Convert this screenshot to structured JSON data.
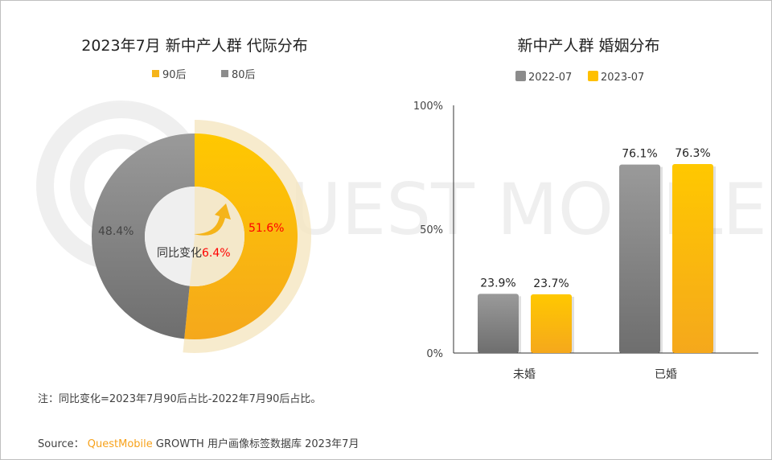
{
  "watermark": "QUEST MOBILE",
  "colors": {
    "yellow": "#f5b41a",
    "gray": "#8c8c8c",
    "red": "#ff0000",
    "brand": "#f7a21b"
  },
  "chart_data": [
    {
      "type": "pie",
      "title": "2023年7月 新中产人群 代际分布",
      "legend_position": "top",
      "slices": [
        {
          "name": "90后",
          "value": 51.6,
          "label": "51.6%",
          "color": "#f5b41a"
        },
        {
          "name": "80后",
          "value": 48.4,
          "label": "48.4%",
          "color": "#8c8c8c"
        }
      ],
      "center_label": "同比变化",
      "center_value": "6.4%",
      "center_icon": "up-arrow-icon"
    },
    {
      "type": "bar",
      "title": "新中产人群 婚姻分布",
      "legend_position": "top",
      "categories": [
        "未婚",
        "已婚"
      ],
      "series": [
        {
          "name": "2022-07",
          "values": [
            23.9,
            76.1
          ],
          "labels": [
            "23.9%",
            "76.1%"
          ],
          "color": "#8c8c8c"
        },
        {
          "name": "2023-07",
          "values": [
            23.7,
            76.3
          ],
          "labels": [
            "23.7%",
            "76.3%"
          ],
          "color": "#ffc000"
        }
      ],
      "ylim": [
        0,
        100
      ],
      "yticks": [
        "0%",
        "50%",
        "100%"
      ],
      "grid": false
    }
  ],
  "note": "注：同比变化=2023年7月90后占比-2022年7月90后占比。",
  "source": {
    "prefix": "Source：",
    "brand": "QuestMobile",
    "text": "GROWTH 用户画像标签数据库 2023年7月"
  }
}
